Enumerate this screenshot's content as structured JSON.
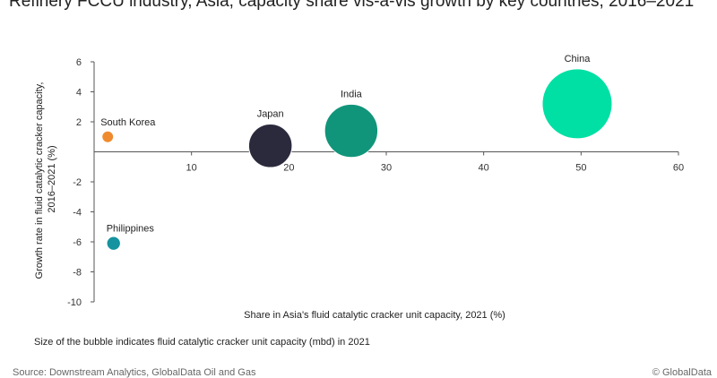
{
  "chart_data": {
    "type": "bubble",
    "title": "Refinery FCCU industry, Asia, capacity share vis-a-vis growth by key countries, 2016–2021",
    "xlabel": "Share in Asia's fluid catalytic cracker unit capacity, 2021 (%)",
    "ylabel_lines": [
      "Growth rate in fluid catalytic cracker capacity,",
      "2016–2021 (%)"
    ],
    "xlim": [
      0,
      60
    ],
    "ylim": [
      -10,
      6
    ],
    "x_ticks": [
      "10",
      "20",
      "30",
      "40",
      "50",
      "60"
    ],
    "y_ticks": [
      "6",
      "4",
      "2",
      "-2",
      "-4",
      "-6",
      "-8",
      "-10"
    ],
    "grid": false,
    "note": "Size of the bubble indicates fluid catalytic cracker unit capacity (mbd) in 2021",
    "points": [
      {
        "name": "China",
        "x": 49.6,
        "y": 3.2,
        "size": 4.4,
        "color": "#00e0a4"
      },
      {
        "name": "India",
        "x": 26.4,
        "y": 1.4,
        "size": 2.55,
        "color": "#11957a"
      },
      {
        "name": "Japan",
        "x": 18.1,
        "y": 0.4,
        "size": 1.7,
        "color": "#2b2a3d"
      },
      {
        "name": "South Korea",
        "x": 1.4,
        "y": 1.0,
        "size": 0.12,
        "color": "#ef8a2e"
      },
      {
        "name": "Philippines",
        "x": 2.0,
        "y": -6.1,
        "size": 0.17,
        "color": "#15939f"
      }
    ]
  },
  "footer": {
    "source": "Source: Downstream Analytics, GlobalData Oil and Gas",
    "copyright": "© GlobalData"
  }
}
